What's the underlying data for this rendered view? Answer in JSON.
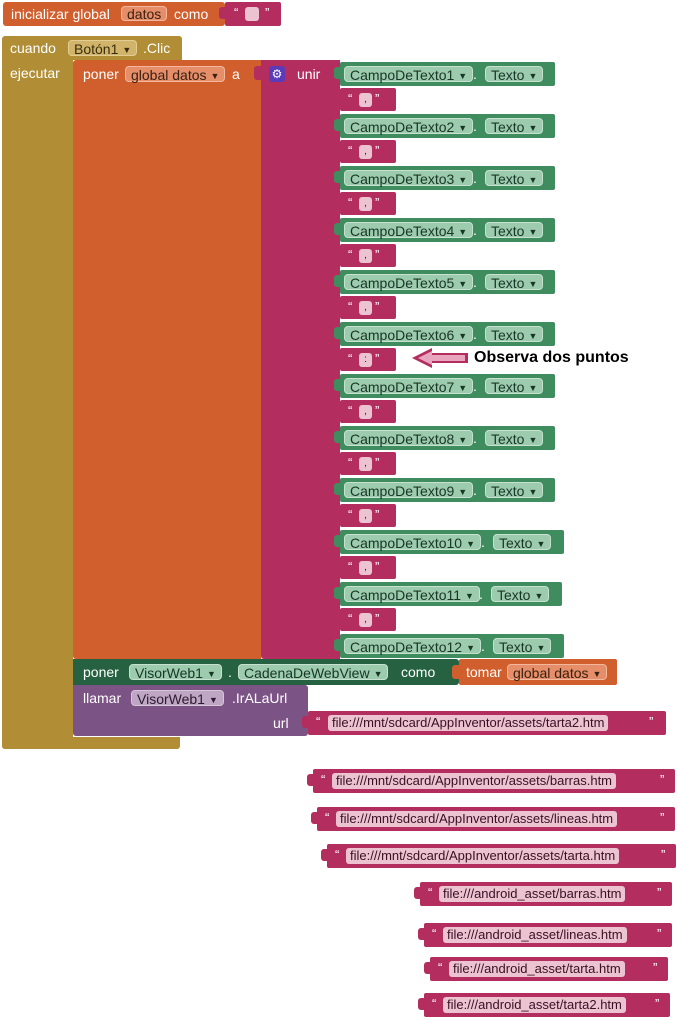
{
  "init_block": {
    "keyword": "inicializar global",
    "var_name": "datos",
    "as": "como",
    "quote_open": "“",
    "quote_close": "”",
    "value": ""
  },
  "event": {
    "when": "cuando",
    "component": "Botón1",
    "event": ".Clic",
    "do": "ejecutar"
  },
  "set_block": {
    "keyword": "poner",
    "var": "global datos",
    "to": "a"
  },
  "join": {
    "label": "unir",
    "icon": "gear-icon"
  },
  "join_items": [
    {
      "component": "CampoDeTexto1",
      "property": "Texto",
      "separator": ","
    },
    {
      "component": "CampoDeTexto2",
      "property": "Texto",
      "separator": ","
    },
    {
      "component": "CampoDeTexto3",
      "property": "Texto",
      "separator": ","
    },
    {
      "component": "CampoDeTexto4",
      "property": "Texto",
      "separator": ","
    },
    {
      "component": "CampoDeTexto5",
      "property": "Texto",
      "separator": ","
    },
    {
      "component": "CampoDeTexto6",
      "property": "Texto",
      "separator": ":"
    },
    {
      "component": "CampoDeTexto7",
      "property": "Texto",
      "separator": ","
    },
    {
      "component": "CampoDeTexto8",
      "property": "Texto",
      "separator": ","
    },
    {
      "component": "CampoDeTexto9",
      "property": "Texto",
      "separator": ","
    },
    {
      "component": "CampoDeTexto10",
      "property": "Texto",
      "separator": ","
    },
    {
      "component": "CampoDeTexto11",
      "property": "Texto",
      "separator": ","
    },
    {
      "component": "CampoDeTexto12",
      "property": "Texto"
    }
  ],
  "annotation": "Observa dos puntos",
  "set_webview": {
    "keyword": "poner",
    "component": "VisorWeb1",
    "property": "CadenaDeWebView",
    "as": "como",
    "get": "tomar",
    "var": "global datos"
  },
  "call_block": {
    "keyword": "llamar",
    "component": "VisorWeb1",
    "method": ".IrALaUrl",
    "param": "url",
    "value": "file:///mnt/sdcard/AppInventor/assets/tarta2.htm"
  },
  "quote_open": "“",
  "quote_close": "”",
  "loose_strings": [
    "file:///mnt/sdcard/AppInventor/assets/barras.htm",
    "file:///mnt/sdcard/AppInventor/assets/lineas.htm",
    "file:///mnt/sdcard/AppInventor/assets/tarta.htm",
    "file:///android_asset/barras.htm",
    "file:///android_asset/lineas.htm",
    "file:///android_asset/tarta.htm",
    "file:///android_asset/tarta2.htm"
  ],
  "colors": {
    "variables": "#D05F2D",
    "control": "#B18E35",
    "component": "#3F8C5E",
    "text": "#B32D5E",
    "procedure_call": "#7C5385",
    "annotation_arrow": "#B32D5E"
  }
}
